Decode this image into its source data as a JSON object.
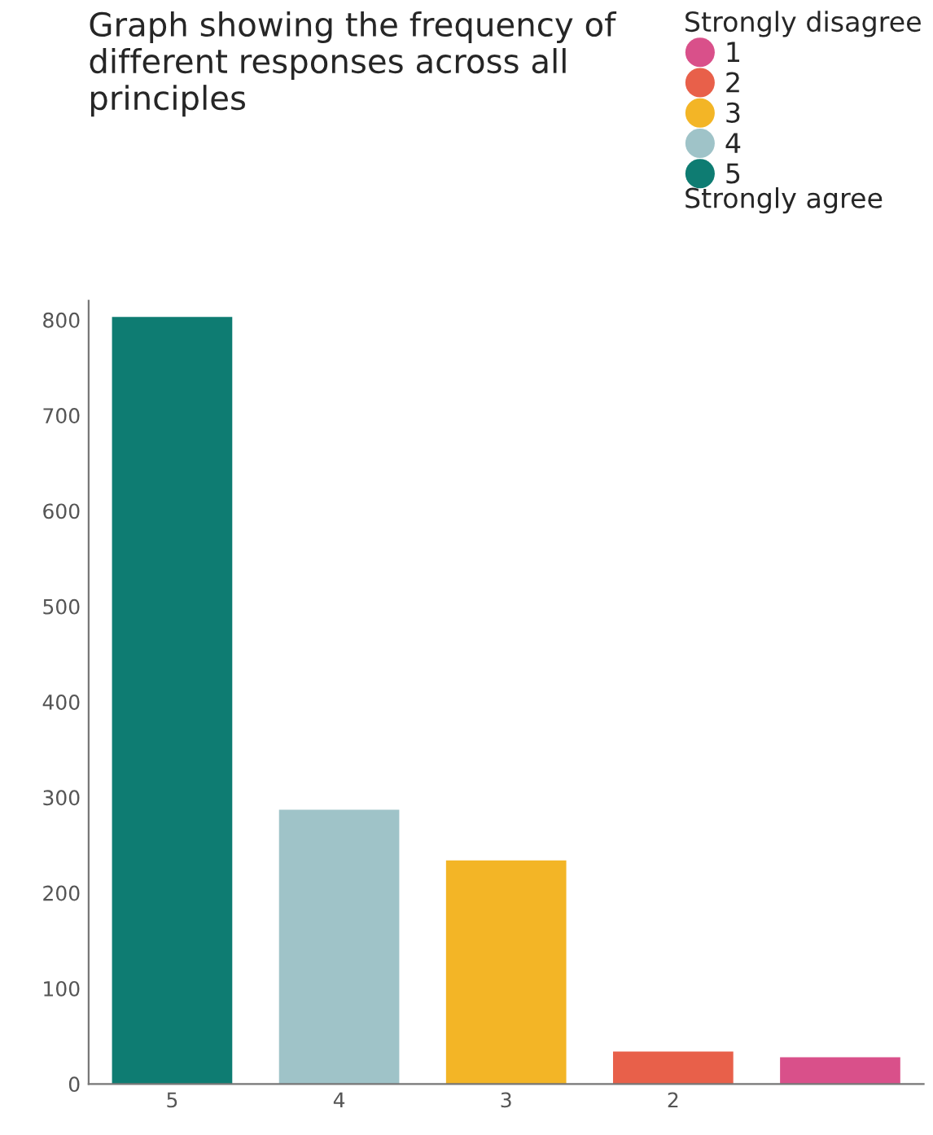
{
  "chart_data": {
    "type": "bar",
    "title": "Graph showing the frequency of different responses across all principles",
    "categories": [
      "5",
      "4",
      "3",
      "2",
      null
    ],
    "series": [
      {
        "name": "1",
        "color": "#d9508a",
        "values": [
          null,
          null,
          null,
          null,
          28
        ]
      },
      {
        "name": "2",
        "color": "#e8604a",
        "values": [
          null,
          null,
          null,
          34,
          null
        ]
      },
      {
        "name": "3",
        "color": "#f3b526",
        "values": [
          null,
          null,
          234,
          null,
          null
        ]
      },
      {
        "name": "4",
        "color": "#9fc3c8",
        "values": [
          null,
          287,
          null,
          null,
          null
        ]
      },
      {
        "name": "5",
        "color": "#0e7c72",
        "values": [
          803,
          null,
          null,
          null,
          null
        ]
      }
    ],
    "legend_title": "Strongly disagree",
    "annotations": [
      "Strongly agree"
    ],
    "legend": "top right",
    "ylim": [
      0,
      820
    ],
    "yticks": [
      0,
      100,
      200,
      300,
      400,
      500,
      600,
      700,
      800
    ],
    "grid": false
  }
}
